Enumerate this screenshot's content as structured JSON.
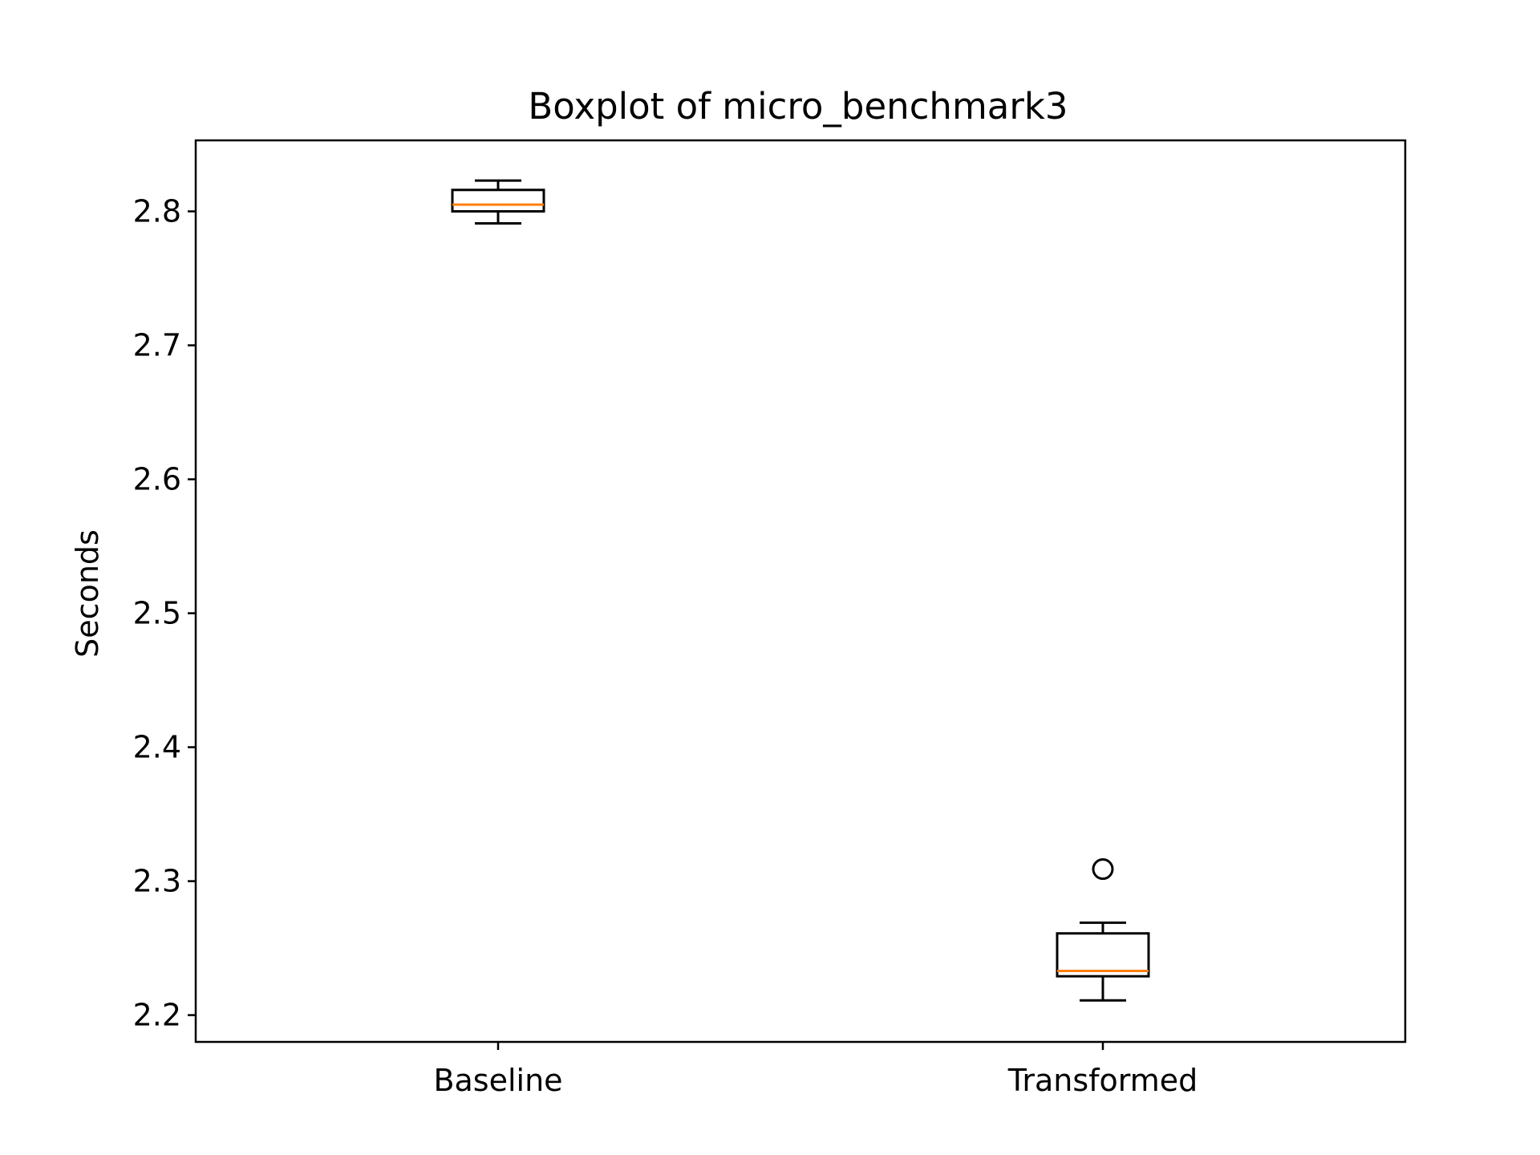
{
  "chart_data": {
    "type": "boxplot",
    "title": "Boxplot of micro_benchmark3",
    "xlabel": "",
    "ylabel": "Seconds",
    "ylim": [
      2.18,
      2.853
    ],
    "yticks": [
      2.2,
      2.3,
      2.4,
      2.5,
      2.6,
      2.7,
      2.8
    ],
    "ytick_labels": [
      "2.2",
      "2.3",
      "2.4",
      "2.5",
      "2.6",
      "2.7",
      "2.8"
    ],
    "categories": [
      "Baseline",
      "Transformed"
    ],
    "boxes": [
      {
        "category": "Baseline",
        "whisker_low": 2.791,
        "q1": 2.8,
        "median": 2.805,
        "q3": 2.816,
        "whisker_high": 2.823,
        "outliers": []
      },
      {
        "category": "Transformed",
        "whisker_low": 2.211,
        "q1": 2.229,
        "median": 2.233,
        "q3": 2.261,
        "whisker_high": 2.269,
        "outliers": [
          2.309
        ]
      }
    ],
    "grid": false,
    "colors": {
      "box": "#000000",
      "median": "#ff7f0e",
      "axes": "#000000",
      "background": "#ffffff"
    }
  }
}
